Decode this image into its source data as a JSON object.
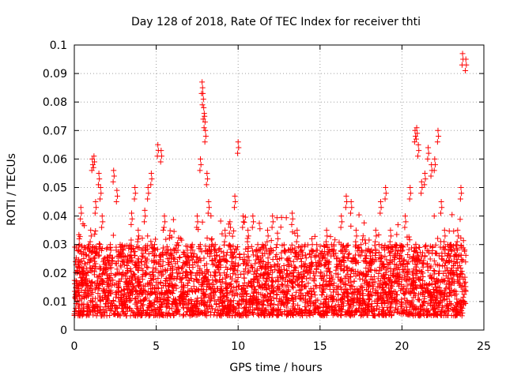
{
  "chart_data": {
    "type": "scatter",
    "title": "Day 128 of 2018, Rate Of TEC Index for receiver thti",
    "xlabel": "GPS time / hours",
    "ylabel": "ROTI / TECUs",
    "xlim": [
      0,
      25
    ],
    "ylim": [
      0,
      0.1
    ],
    "xticks": [
      0,
      5,
      10,
      15,
      20,
      25
    ],
    "yticks": [
      0,
      0.01,
      0.02,
      0.03,
      0.04,
      0.05,
      0.06,
      0.07,
      0.08,
      0.09,
      0.1
    ],
    "xtick_labels": [
      "0",
      "5",
      "10",
      "15",
      "20",
      "25"
    ],
    "ytick_labels": [
      "0",
      "0.01",
      "0.02",
      "0.03",
      "0.04",
      "0.05",
      "0.06",
      "0.07",
      "0.08",
      "0.09",
      "0.1"
    ],
    "grid": true,
    "marker": "+",
    "color": "#ff0000",
    "series": [
      {
        "name": "ROTI",
        "x": [
          0.1,
          0.2,
          0.3,
          0.4,
          0.5,
          0.7,
          0.9,
          1.0,
          1.1,
          1.2,
          1.3,
          1.5,
          1.6,
          1.7,
          1.8,
          2.0,
          2.2,
          2.4,
          2.6,
          2.8,
          3.0,
          3.2,
          3.5,
          3.7,
          3.9,
          4.1,
          4.3,
          4.5,
          4.7,
          4.9,
          5.1,
          5.3,
          5.5,
          5.7,
          6.0,
          6.3,
          6.6,
          6.9,
          7.2,
          7.5,
          7.7,
          7.8,
          7.85,
          7.9,
          7.95,
          8.0,
          8.1,
          8.2,
          8.4,
          8.6,
          8.9,
          9.2,
          9.5,
          9.8,
          10.0,
          10.3,
          10.6,
          10.9,
          11.2,
          11.5,
          11.8,
          12.1,
          12.4,
          12.7,
          13.0,
          13.3,
          13.6,
          13.9,
          14.2,
          14.5,
          14.8,
          15.1,
          15.4,
          15.7,
          16.0,
          16.3,
          16.6,
          16.9,
          17.2,
          17.5,
          17.8,
          18.1,
          18.4,
          18.7,
          19.0,
          19.3,
          19.6,
          19.9,
          20.2,
          20.5,
          20.8,
          20.9,
          21.0,
          21.2,
          21.4,
          21.6,
          21.8,
          22.0,
          22.2,
          22.4,
          22.6,
          22.8,
          23.0,
          23.2,
          23.4,
          23.6,
          23.7,
          23.9
        ],
        "y": [
          0.015,
          0.024,
          0.032,
          0.043,
          0.02,
          0.018,
          0.03,
          0.035,
          0.06,
          0.061,
          0.045,
          0.055,
          0.05,
          0.04,
          0.025,
          0.018,
          0.03,
          0.056,
          0.049,
          0.03,
          0.028,
          0.02,
          0.041,
          0.05,
          0.035,
          0.028,
          0.042,
          0.05,
          0.055,
          0.03,
          0.065,
          0.063,
          0.04,
          0.025,
          0.02,
          0.024,
          0.022,
          0.028,
          0.03,
          0.04,
          0.06,
          0.087,
          0.083,
          0.078,
          0.075,
          0.07,
          0.055,
          0.045,
          0.032,
          0.03,
          0.024,
          0.035,
          0.038,
          0.047,
          0.066,
          0.04,
          0.035,
          0.04,
          0.03,
          0.026,
          0.035,
          0.04,
          0.034,
          0.02,
          0.025,
          0.041,
          0.035,
          0.028,
          0.022,
          0.032,
          0.03,
          0.027,
          0.035,
          0.03,
          0.025,
          0.04,
          0.047,
          0.045,
          0.035,
          0.03,
          0.028,
          0.025,
          0.035,
          0.045,
          0.05,
          0.035,
          0.03,
          0.028,
          0.04,
          0.05,
          0.07,
          0.071,
          0.065,
          0.052,
          0.055,
          0.064,
          0.058,
          0.06,
          0.07,
          0.045,
          0.035,
          0.03,
          0.03,
          0.028,
          0.035,
          0.05,
          0.097,
          0.095
        ],
        "bulk_band": [
          0.005,
          0.03
        ]
      }
    ]
  }
}
